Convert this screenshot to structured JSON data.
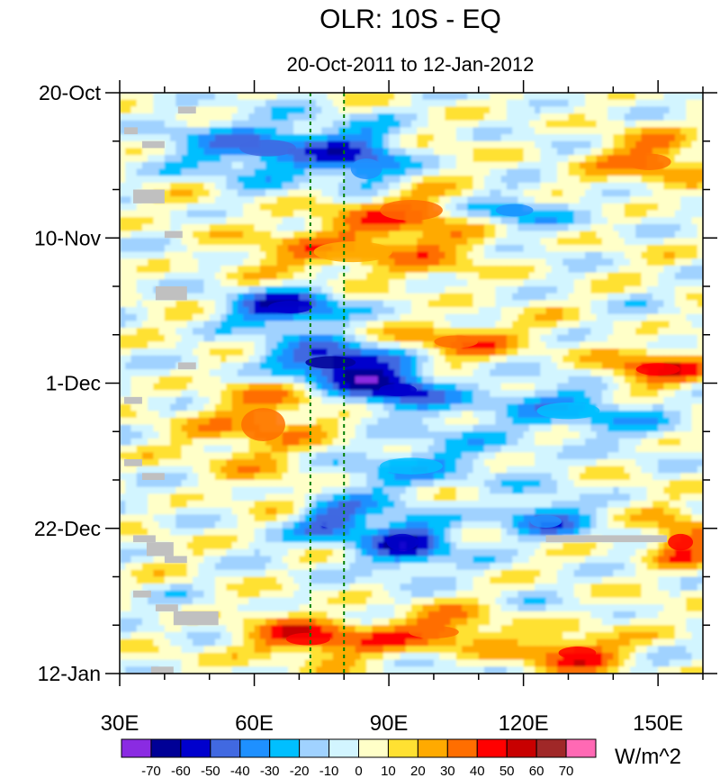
{
  "chart_data": {
    "type": "heatmap",
    "title": "OLR: 10S - EQ",
    "subtitle": "20-Oct-2011 to 12-Jan-2012",
    "xlabel": "",
    "ylabel": "",
    "xlim": [
      30,
      160
    ],
    "x_tick_labels": [
      {
        "lon": 30,
        "label": "30E"
      },
      {
        "lon": 60,
        "label": "60E"
      },
      {
        "lon": 90,
        "label": "90E"
      },
      {
        "lon": 120,
        "label": "120E"
      },
      {
        "lon": 150,
        "label": "150E"
      }
    ],
    "y_tick_labels": [
      {
        "day": 0,
        "label": "20-Oct"
      },
      {
        "day": 21,
        "label": "10-Nov"
      },
      {
        "day": 42,
        "label": "1-Dec"
      },
      {
        "day": 63,
        "label": "22-Dec"
      },
      {
        "day": 84,
        "label": "12-Jan"
      }
    ],
    "y_days_total": 84,
    "reference_lines_lon": [
      72.5,
      80
    ],
    "colorbar": {
      "unit": "W/m^2",
      "levels": [
        -70,
        -60,
        -50,
        -40,
        -30,
        -20,
        -10,
        0,
        10,
        20,
        30,
        40,
        50,
        60,
        70
      ],
      "colors": [
        "#8a2be2",
        "#000096",
        "#0000cd",
        "#4169e1",
        "#1e90ff",
        "#00bfff",
        "#a0d2ff",
        "#d2f5ff",
        "#ffffc8",
        "#ffe132",
        "#ffaa00",
        "#ff6e00",
        "#ff0000",
        "#c80000",
        "#a02828",
        "#ff69b4"
      ]
    },
    "anomaly_features": [
      {
        "lon": 63,
        "day": 8,
        "value": -45,
        "rx": 18,
        "ry": 4
      },
      {
        "lon": 85,
        "day": 11,
        "value": -40,
        "rx": 10,
        "ry": 5
      },
      {
        "lon": 95,
        "day": 17,
        "value": 30,
        "rx": 20,
        "ry": 5
      },
      {
        "lon": 82,
        "day": 23,
        "value": 25,
        "rx": 25,
        "ry": 5
      },
      {
        "lon": 118,
        "day": 17,
        "value": -40,
        "rx": 12,
        "ry": 3
      },
      {
        "lon": 148,
        "day": 10,
        "value": 30,
        "rx": 14,
        "ry": 4
      },
      {
        "lon": 68,
        "day": 31,
        "value": -55,
        "rx": 14,
        "ry": 3
      },
      {
        "lon": 77,
        "day": 39,
        "value": -65,
        "rx": 16,
        "ry": 3
      },
      {
        "lon": 92,
        "day": 43,
        "value": -55,
        "rx": 12,
        "ry": 3
      },
      {
        "lon": 105,
        "day": 36,
        "value": 35,
        "rx": 14,
        "ry": 3
      },
      {
        "lon": 150,
        "day": 40,
        "value": 40,
        "rx": 14,
        "ry": 3
      },
      {
        "lon": 62,
        "day": 48,
        "value": 30,
        "rx": 14,
        "ry": 8
      },
      {
        "lon": 130,
        "day": 46,
        "value": -30,
        "rx": 20,
        "ry": 4
      },
      {
        "lon": 95,
        "day": 54,
        "value": -25,
        "rx": 20,
        "ry": 4
      },
      {
        "lon": 77,
        "day": 62,
        "value": -45,
        "rx": 8,
        "ry": 3
      },
      {
        "lon": 93,
        "day": 65,
        "value": -55,
        "rx": 10,
        "ry": 4
      },
      {
        "lon": 125,
        "day": 62,
        "value": -40,
        "rx": 10,
        "ry": 3
      },
      {
        "lon": 155,
        "day": 65,
        "value": 40,
        "rx": 8,
        "ry": 4
      },
      {
        "lon": 72,
        "day": 79,
        "value": 45,
        "rx": 14,
        "ry": 3
      },
      {
        "lon": 100,
        "day": 78,
        "value": 35,
        "rx": 16,
        "ry": 3
      },
      {
        "lon": 132,
        "day": 81,
        "value": 40,
        "rx": 12,
        "ry": 3
      }
    ],
    "missing_data": [
      {
        "lon0": 43,
        "lon1": 47,
        "day0": 2,
        "day1": 3
      },
      {
        "lon0": 31,
        "lon1": 34,
        "day0": 5,
        "day1": 6
      },
      {
        "lon0": 35,
        "lon1": 40,
        "day0": 7,
        "day1": 8
      },
      {
        "lon0": 33,
        "lon1": 40,
        "day0": 14,
        "day1": 16
      },
      {
        "lon0": 40,
        "lon1": 44,
        "day0": 20,
        "day1": 21
      },
      {
        "lon0": 38,
        "lon1": 45,
        "day0": 28,
        "day1": 30
      },
      {
        "lon0": 43,
        "lon1": 47,
        "day0": 39,
        "day1": 40
      },
      {
        "lon0": 31,
        "lon1": 35,
        "day0": 44,
        "day1": 45
      },
      {
        "lon0": 31,
        "lon1": 35,
        "day0": 53,
        "day1": 54
      },
      {
        "lon0": 35,
        "lon1": 40,
        "day0": 55,
        "day1": 56
      },
      {
        "lon0": 33,
        "lon1": 38,
        "day0": 64,
        "day1": 65
      },
      {
        "lon0": 36,
        "lon1": 42,
        "day0": 65,
        "day1": 67
      },
      {
        "lon0": 40,
        "lon1": 45,
        "day0": 67,
        "day1": 68
      },
      {
        "lon0": 125,
        "lon1": 152,
        "day0": 64,
        "day1": 65
      },
      {
        "lon0": 33,
        "lon1": 37,
        "day0": 72,
        "day1": 73
      },
      {
        "lon0": 38,
        "lon1": 43,
        "day0": 74,
        "day1": 75
      },
      {
        "lon0": 42,
        "lon1": 52,
        "day0": 75,
        "day1": 77
      },
      {
        "lon0": 37,
        "lon1": 42,
        "day0": 83,
        "day1": 84
      }
    ]
  }
}
